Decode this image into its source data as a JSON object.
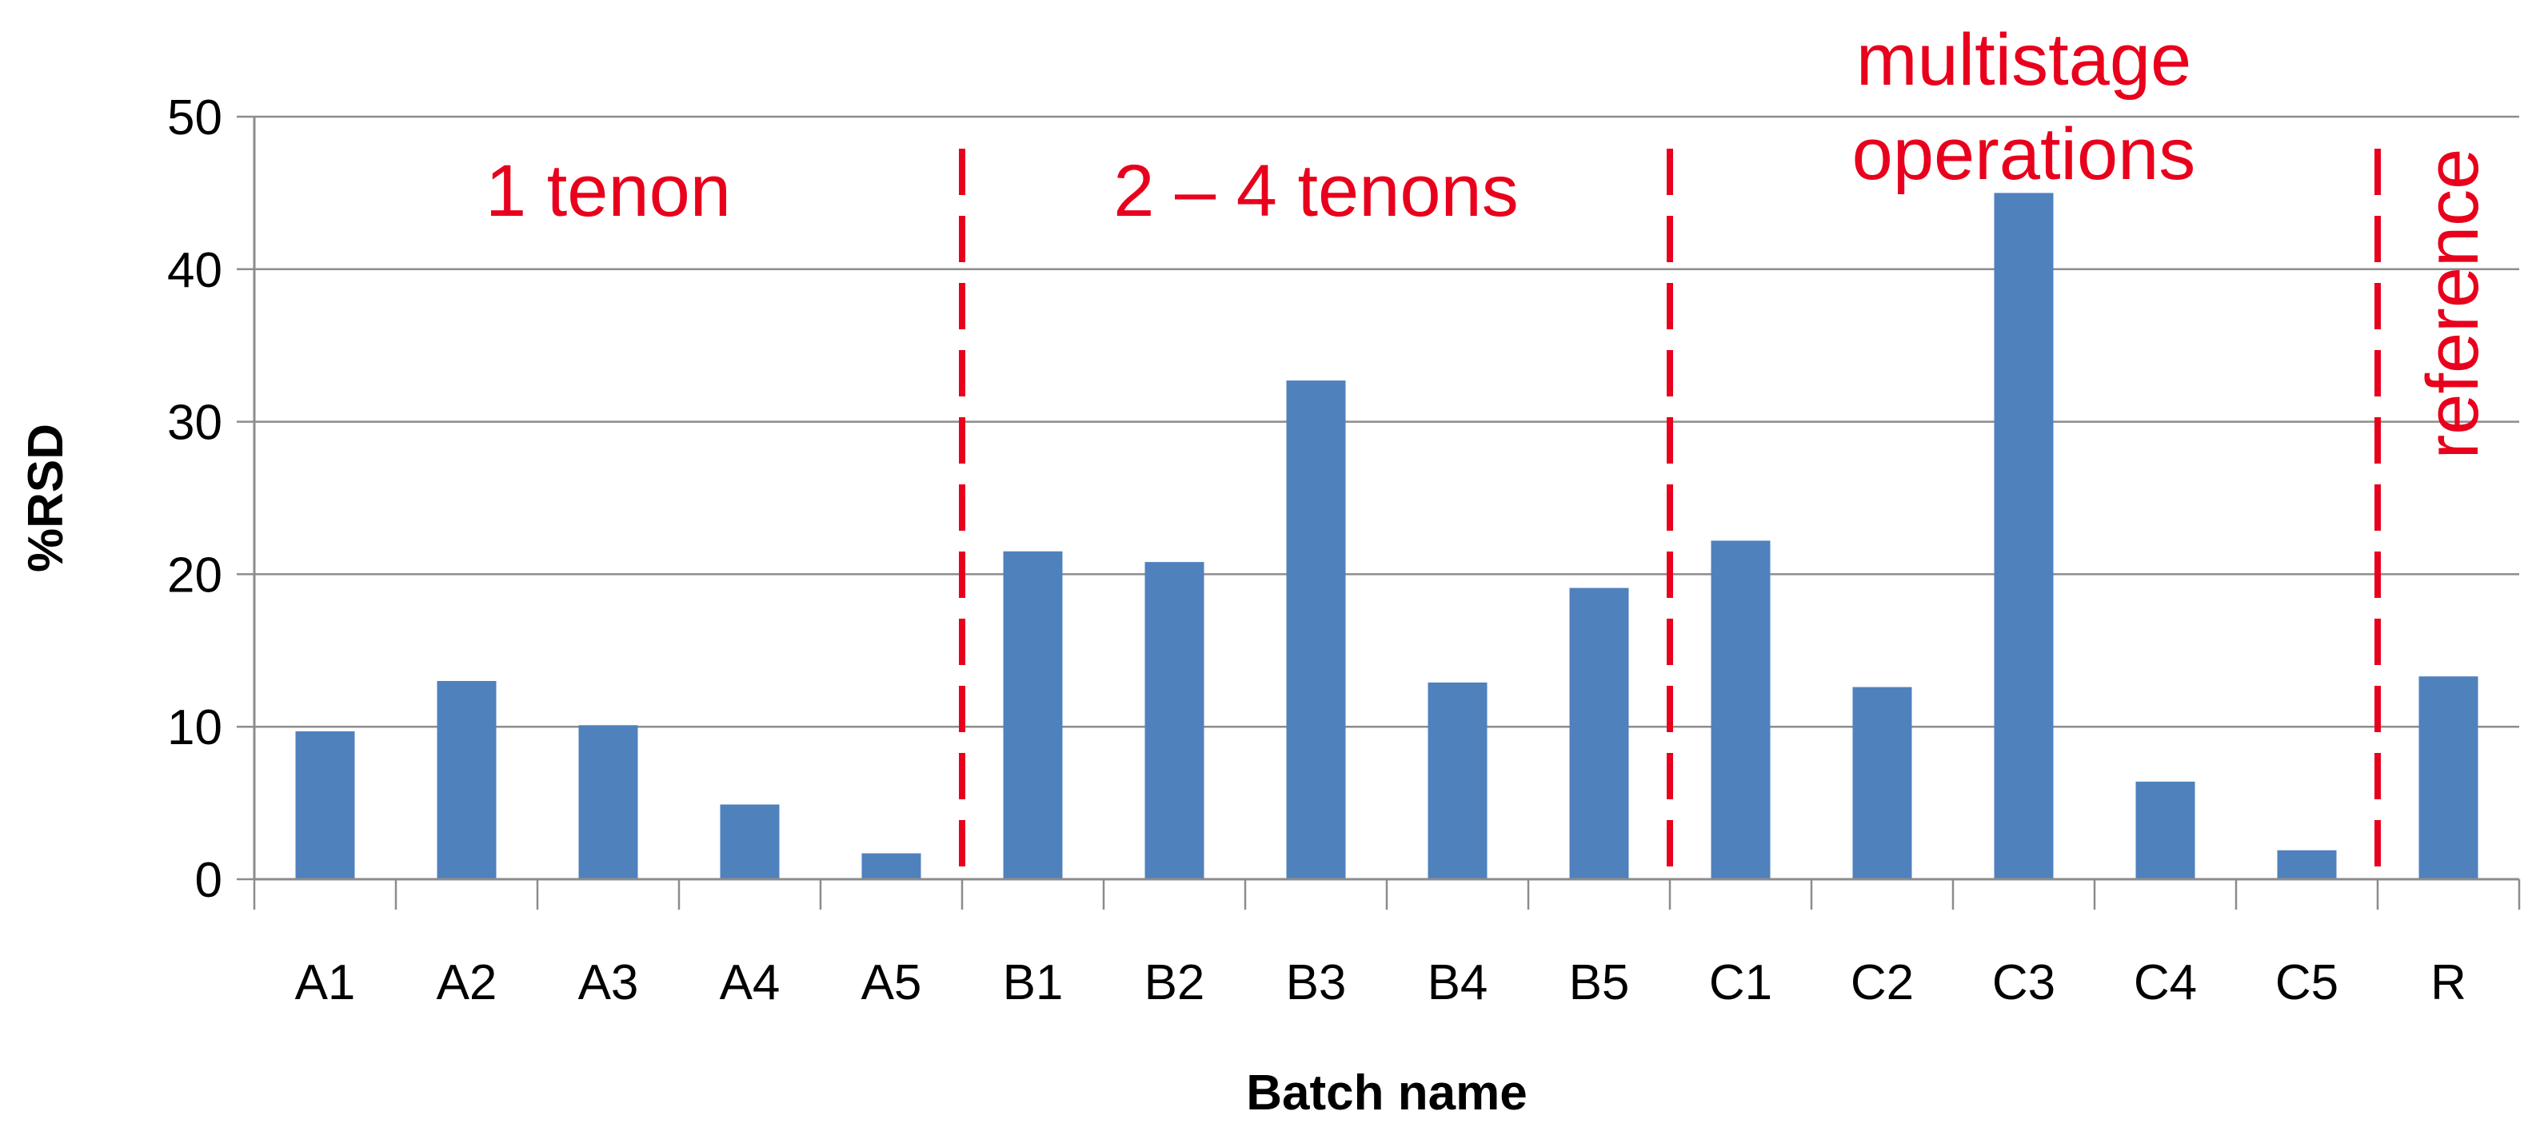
{
  "chart_data": {
    "type": "bar",
    "title": "",
    "xlabel": "Batch name",
    "ylabel": "%RSD",
    "ylim": [
      0,
      50
    ],
    "yticks": [
      0,
      10,
      20,
      30,
      40,
      50
    ],
    "grid": true,
    "legend": "none",
    "categories": [
      "A1",
      "A2",
      "A3",
      "A4",
      "A5",
      "B1",
      "B2",
      "B3",
      "B4",
      "B5",
      "C1",
      "C2",
      "C3",
      "C4",
      "C5",
      "R"
    ],
    "series": [
      {
        "values": [
          9.7,
          13.0,
          10.1,
          4.9,
          1.7,
          21.5,
          20.8,
          32.7,
          12.9,
          19.1,
          22.2,
          12.6,
          45.0,
          6.4,
          1.9,
          13.3
        ]
      }
    ],
    "bar_color": "#4f81bd",
    "separators": [
      {
        "after_category": "A5",
        "color": "#e8001c"
      },
      {
        "after_category": "B5",
        "color": "#e8001c"
      },
      {
        "after_category": "C5",
        "color": "#e8001c"
      }
    ],
    "annotations": [
      {
        "lines": [
          "1 tenon"
        ],
        "group": "A"
      },
      {
        "lines": [
          "2 – 4 tenons"
        ],
        "group": "B"
      },
      {
        "lines": [
          "multistage",
          "operations"
        ],
        "group": "C"
      },
      {
        "lines": [
          "reference"
        ],
        "group": "R",
        "rotated": true
      }
    ],
    "annotation_color": "#e8001c"
  }
}
